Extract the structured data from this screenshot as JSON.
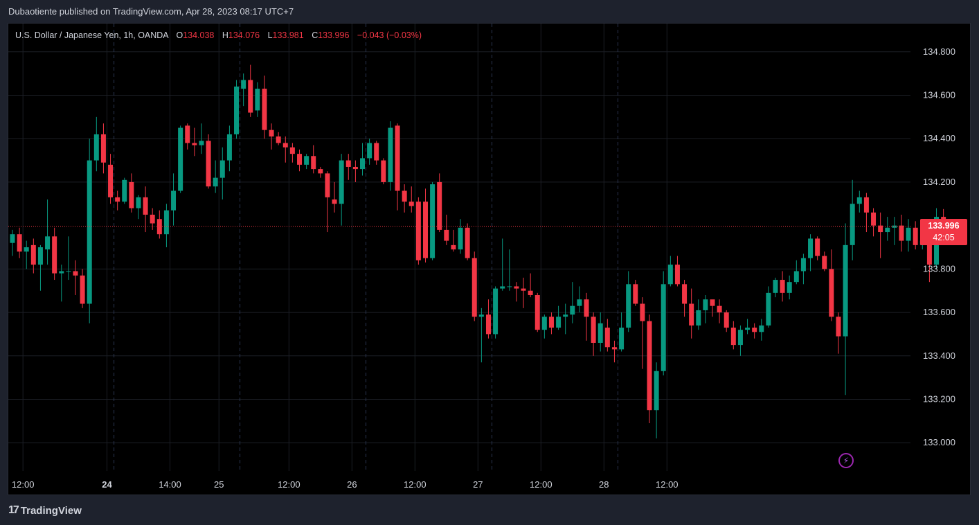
{
  "header": {
    "publish_line": "Dubaotiente published on TradingView.com, Apr 28, 2023 08:17 UTC+7"
  },
  "legend": {
    "symbol": "U.S. Dollar / Japanese Yen, 1h, OANDA",
    "open_label": "O",
    "open": "134.038",
    "high_label": "H",
    "high": "134.076",
    "low_label": "L",
    "low": "133.981",
    "close_label": "C",
    "close": "133.996",
    "change": "−0.043 (−0.03%)"
  },
  "price_badge": {
    "price": "133.996",
    "countdown": "42:05"
  },
  "footer": {
    "brand": "TradingView"
  },
  "colors": {
    "up": "#089981",
    "down": "#f23645",
    "grid": "#1c1f26",
    "text": "#d1d4dc"
  },
  "chart_data": {
    "type": "candlestick",
    "y_range": [
      132.87,
      134.93
    ],
    "y_ticks": [
      "134.800",
      "134.600",
      "134.400",
      "134.200",
      "133.800",
      "133.600",
      "133.400",
      "133.200",
      "133.000"
    ],
    "x_ticks": [
      {
        "label": "12:00",
        "i": 1.5,
        "bold": false
      },
      {
        "label": "24",
        "i": 13.5,
        "bold": true
      },
      {
        "label": "14:00",
        "i": 22.5,
        "bold": false
      },
      {
        "label": "25",
        "i": 29.5,
        "bold": false
      },
      {
        "label": "12:00",
        "i": 39.5,
        "bold": false
      },
      {
        "label": "26",
        "i": 48.5,
        "bold": false
      },
      {
        "label": "12:00",
        "i": 57.5,
        "bold": false
      },
      {
        "label": "27",
        "i": 66.5,
        "bold": false
      },
      {
        "label": "12:00",
        "i": 75.5,
        "bold": false
      },
      {
        "label": "28",
        "i": 84.5,
        "bold": false
      },
      {
        "label": "12:00",
        "i": 93.5,
        "bold": false
      }
    ],
    "session_breaks": [
      14.5,
      32.5,
      50.5,
      68.5,
      86.5
    ],
    "last_price": 133.996,
    "candles": [
      [
        133.92,
        133.96,
        133.86,
        133.98
      ],
      [
        133.96,
        133.88,
        133.85,
        133.99
      ],
      [
        133.88,
        133.9,
        133.8,
        133.93
      ],
      [
        133.91,
        133.82,
        133.78,
        133.94
      ],
      [
        133.82,
        133.9,
        133.7,
        133.91
      ],
      [
        133.89,
        133.95,
        133.82,
        134.12
      ],
      [
        133.95,
        133.78,
        133.75,
        133.99
      ],
      [
        133.78,
        133.79,
        133.65,
        133.82
      ],
      [
        133.79,
        133.79,
        133.75,
        133.95
      ],
      [
        133.79,
        133.77,
        133.68,
        133.84
      ],
      [
        133.77,
        133.64,
        133.62,
        133.8
      ],
      [
        133.64,
        134.3,
        133.55,
        134.4
      ],
      [
        134.3,
        134.42,
        134.25,
        134.5
      ],
      [
        134.42,
        134.29,
        134.24,
        134.47
      ],
      [
        134.28,
        134.13,
        134.1,
        134.33
      ],
      [
        134.13,
        134.11,
        134.07,
        134.16
      ],
      [
        134.11,
        134.21,
        134.1,
        134.22
      ],
      [
        134.2,
        134.08,
        134.06,
        134.24
      ],
      [
        134.08,
        134.13,
        134.03,
        134.14
      ],
      [
        134.13,
        134.05,
        133.97,
        134.18
      ],
      [
        134.05,
        134.01,
        133.98,
        134.08
      ],
      [
        134.03,
        133.96,
        133.94,
        134.07
      ],
      [
        133.96,
        134.07,
        133.9,
        134.1
      ],
      [
        134.07,
        134.16,
        134.0,
        134.24
      ],
      [
        134.16,
        134.45,
        134.15,
        134.46
      ],
      [
        134.46,
        134.38,
        134.35,
        134.47
      ],
      [
        134.38,
        134.37,
        134.32,
        134.45
      ],
      [
        134.37,
        134.39,
        134.33,
        134.47
      ],
      [
        134.39,
        134.18,
        134.17,
        134.42
      ],
      [
        134.18,
        134.22,
        134.15,
        134.3
      ],
      [
        134.22,
        134.3,
        134.12,
        134.36
      ],
      [
        134.3,
        134.42,
        134.25,
        134.46
      ],
      [
        134.42,
        134.64,
        134.4,
        134.67
      ],
      [
        134.63,
        134.67,
        134.55,
        134.7
      ],
      [
        134.67,
        134.52,
        134.5,
        134.74
      ],
      [
        134.53,
        134.63,
        134.5,
        134.66
      ],
      [
        134.63,
        134.44,
        134.4,
        134.69
      ],
      [
        134.44,
        134.41,
        134.35,
        134.47
      ],
      [
        134.41,
        134.38,
        134.37,
        134.43
      ],
      [
        134.38,
        134.36,
        134.29,
        134.41
      ],
      [
        134.36,
        134.33,
        134.29,
        134.38
      ],
      [
        134.33,
        134.28,
        134.25,
        134.35
      ],
      [
        134.28,
        134.32,
        134.26,
        134.33
      ],
      [
        134.32,
        134.26,
        134.24,
        134.37
      ],
      [
        134.26,
        134.24,
        134.22,
        134.27
      ],
      [
        134.24,
        134.13,
        133.97,
        134.25
      ],
      [
        134.12,
        134.1,
        134.06,
        134.2
      ],
      [
        134.1,
        134.3,
        134.0,
        134.33
      ],
      [
        134.3,
        134.27,
        134.21,
        134.33
      ],
      [
        134.27,
        134.26,
        134.2,
        134.3
      ],
      [
        134.26,
        134.31,
        134.23,
        134.38
      ],
      [
        134.31,
        134.38,
        134.28,
        134.4
      ],
      [
        134.38,
        134.3,
        134.28,
        134.39
      ],
      [
        134.3,
        134.2,
        134.19,
        134.31
      ],
      [
        134.2,
        134.45,
        134.16,
        134.48
      ],
      [
        134.46,
        134.16,
        134.07,
        134.47
      ],
      [
        134.16,
        134.11,
        134.06,
        134.19
      ],
      [
        134.11,
        134.09,
        134.06,
        134.18
      ],
      [
        134.11,
        133.84,
        133.82,
        134.13
      ],
      [
        134.11,
        133.85,
        133.83,
        134.17
      ],
      [
        133.85,
        134.19,
        133.84,
        134.2
      ],
      [
        134.2,
        133.98,
        133.97,
        134.24
      ],
      [
        133.98,
        133.93,
        133.91,
        134.05
      ],
      [
        133.91,
        133.89,
        133.88,
        133.98
      ],
      [
        133.89,
        133.99,
        133.87,
        134.03
      ],
      [
        133.99,
        133.85,
        133.84,
        134.01
      ],
      [
        133.85,
        133.58,
        133.56,
        133.88
      ],
      [
        133.58,
        133.59,
        133.37,
        133.62
      ],
      [
        133.59,
        133.5,
        133.48,
        133.66
      ],
      [
        133.5,
        133.71,
        133.48,
        133.72
      ],
      [
        133.71,
        133.72,
        133.7,
        133.94
      ],
      [
        133.72,
        133.72,
        133.7,
        133.89
      ],
      [
        133.72,
        133.71,
        133.65,
        133.74
      ],
      [
        133.71,
        133.7,
        133.62,
        133.76
      ],
      [
        133.7,
        133.68,
        133.67,
        133.78
      ],
      [
        133.68,
        133.52,
        133.51,
        133.69
      ],
      [
        133.52,
        133.58,
        133.48,
        133.59
      ],
      [
        133.58,
        133.53,
        133.5,
        133.6
      ],
      [
        133.53,
        133.58,
        133.52,
        133.63
      ],
      [
        133.58,
        133.59,
        133.5,
        133.64
      ],
      [
        133.59,
        133.63,
        133.55,
        133.74
      ],
      [
        133.63,
        133.66,
        133.6,
        133.72
      ],
      [
        133.66,
        133.58,
        133.47,
        133.69
      ],
      [
        133.58,
        133.46,
        133.4,
        133.6
      ],
      [
        133.46,
        133.55,
        133.42,
        133.6
      ],
      [
        133.53,
        133.44,
        133.42,
        133.57
      ],
      [
        133.44,
        133.43,
        133.37,
        133.47
      ],
      [
        133.43,
        133.53,
        133.42,
        133.6
      ],
      [
        133.53,
        133.73,
        133.51,
        133.79
      ],
      [
        133.73,
        133.64,
        133.63,
        133.75
      ],
      [
        133.64,
        133.56,
        133.34,
        133.67
      ],
      [
        133.56,
        133.15,
        133.09,
        133.59
      ],
      [
        133.15,
        133.33,
        133.02,
        133.37
      ],
      [
        133.33,
        133.73,
        133.31,
        133.79
      ],
      [
        133.73,
        133.82,
        133.72,
        133.86
      ],
      [
        133.82,
        133.73,
        133.72,
        133.86
      ],
      [
        133.73,
        133.64,
        133.58,
        133.75
      ],
      [
        133.64,
        133.54,
        133.48,
        133.71
      ],
      [
        133.54,
        133.61,
        133.52,
        133.66
      ],
      [
        133.61,
        133.66,
        133.55,
        133.68
      ],
      [
        133.66,
        133.63,
        133.58,
        133.65
      ],
      [
        133.63,
        133.6,
        133.55,
        133.66
      ],
      [
        133.6,
        133.53,
        133.51,
        133.61
      ],
      [
        133.53,
        133.45,
        133.43,
        133.56
      ],
      [
        133.45,
        133.52,
        133.4,
        133.54
      ],
      [
        133.52,
        133.53,
        133.5,
        133.57
      ],
      [
        133.53,
        133.51,
        133.48,
        133.55
      ],
      [
        133.51,
        133.54,
        133.47,
        133.57
      ],
      [
        133.54,
        133.69,
        133.53,
        133.72
      ],
      [
        133.69,
        133.75,
        133.67,
        133.76
      ],
      [
        133.75,
        133.69,
        133.65,
        133.79
      ],
      [
        133.69,
        133.74,
        133.66,
        133.77
      ],
      [
        133.74,
        133.79,
        133.73,
        133.84
      ],
      [
        133.79,
        133.85,
        133.73,
        133.87
      ],
      [
        133.85,
        133.94,
        133.79,
        133.96
      ],
      [
        133.94,
        133.86,
        133.84,
        133.95
      ],
      [
        133.86,
        133.8,
        133.79,
        133.88
      ],
      [
        133.8,
        133.58,
        133.56,
        133.89
      ],
      [
        133.58,
        133.49,
        133.41,
        133.6
      ],
      [
        133.49,
        133.91,
        133.22,
        134.01
      ],
      [
        133.91,
        134.1,
        133.84,
        134.21
      ],
      [
        134.1,
        134.13,
        134.06,
        134.16
      ],
      [
        134.13,
        134.06,
        133.97,
        134.15
      ],
      [
        134.06,
        134.0,
        133.95,
        134.08
      ],
      [
        134.0,
        133.97,
        133.85,
        134.06
      ],
      [
        133.97,
        133.99,
        133.93,
        134.04
      ],
      [
        133.99,
        134.0,
        133.91,
        134.04
      ],
      [
        134.0,
        133.93,
        133.88,
        134.05
      ],
      [
        133.93,
        133.99,
        133.88,
        134.03
      ],
      [
        133.99,
        133.91,
        133.89,
        134.02
      ],
      [
        133.91,
        133.93,
        133.89,
        133.96
      ],
      [
        133.93,
        133.82,
        133.74,
        133.95
      ],
      [
        133.82,
        134.04,
        133.8,
        134.08
      ],
      [
        134.04,
        133.996,
        133.981,
        134.076
      ]
    ]
  }
}
